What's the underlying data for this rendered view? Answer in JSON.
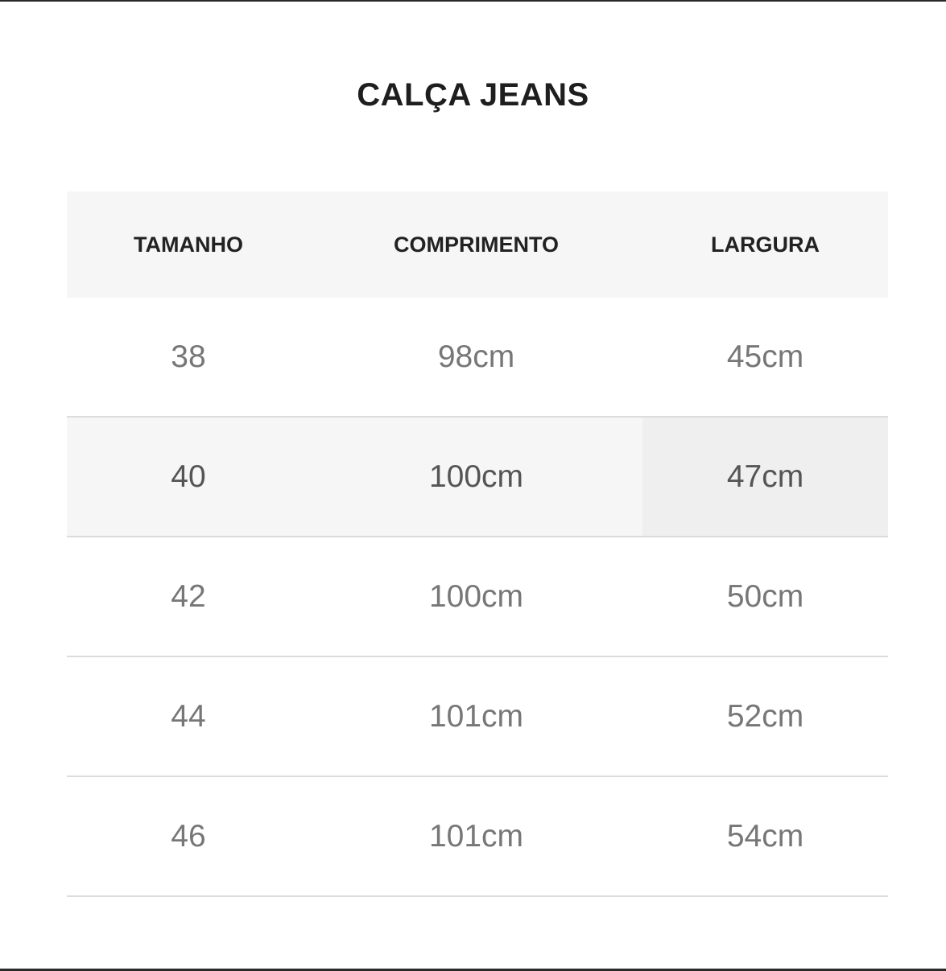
{
  "title": "CALÇA JEANS",
  "table": {
    "headers": [
      "TAMANHO",
      "COMPRIMENTO",
      "LARGURA"
    ],
    "rows": [
      [
        "38",
        "98cm",
        "45cm"
      ],
      [
        "40",
        "100cm",
        "47cm"
      ],
      [
        "42",
        "100cm",
        "50cm"
      ],
      [
        "44",
        "101cm",
        "52cm"
      ],
      [
        "46",
        "101cm",
        "54cm"
      ]
    ],
    "highlighted_row": "40"
  }
}
